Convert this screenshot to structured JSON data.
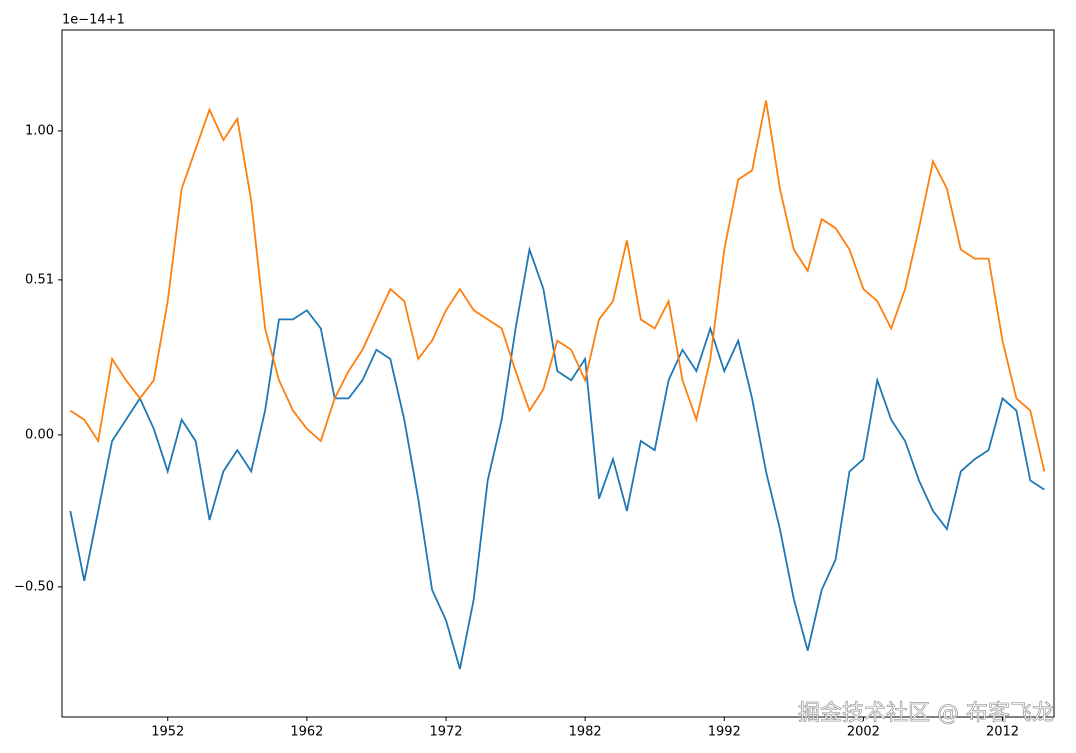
{
  "chart_data": {
    "type": "line",
    "offset_label": "1e−14+1",
    "watermark": "掘金技术社区 @ 布客飞龙",
    "x": [
      1945,
      1946,
      1947,
      1948,
      1949,
      1950,
      1951,
      1952,
      1953,
      1954,
      1955,
      1956,
      1957,
      1958,
      1959,
      1960,
      1961,
      1962,
      1963,
      1964,
      1965,
      1966,
      1967,
      1968,
      1969,
      1970,
      1971,
      1972,
      1973,
      1974,
      1975,
      1976,
      1977,
      1978,
      1979,
      1980,
      1981,
      1982,
      1983,
      1984,
      1985,
      1986,
      1987,
      1988,
      1989,
      1990,
      1991,
      1992,
      1993,
      1994,
      1995,
      1996,
      1997,
      1998,
      1999,
      2000,
      2001,
      2002,
      2003,
      2004,
      2005,
      2006,
      2007,
      2008,
      2009,
      2010,
      2011,
      2012,
      2013,
      2014,
      2015
    ],
    "series": [
      {
        "color": "#1f77b4",
        "values": [
          -0.25,
          -0.48,
          -0.25,
          -0.02,
          0.05,
          0.12,
          0.02,
          -0.12,
          0.05,
          -0.02,
          -0.28,
          -0.12,
          -0.05,
          -0.12,
          0.08,
          0.38,
          0.38,
          0.41,
          0.35,
          0.12,
          0.12,
          0.18,
          0.28,
          0.25,
          0.05,
          -0.21,
          -0.51,
          -0.61,
          -0.77,
          -0.54,
          -0.15,
          0.05,
          0.35,
          0.61,
          0.48,
          0.21,
          0.18,
          0.25,
          -0.21,
          -0.08,
          -0.25,
          -0.02,
          -0.05,
          0.18,
          0.28,
          0.21,
          0.35,
          0.21,
          0.31,
          0.12,
          -0.12,
          -0.31,
          -0.54,
          -0.71,
          -0.51,
          -0.41,
          -0.12,
          -0.08,
          0.18,
          0.05,
          -0.02,
          -0.15,
          -0.25,
          -0.31,
          -0.12,
          -0.08,
          -0.05,
          0.12,
          0.08,
          -0.15,
          -0.18
        ]
      },
      {
        "color": "#ff7f0e",
        "values": [
          0.08,
          0.05,
          -0.02,
          0.25,
          0.18,
          0.12,
          0.18,
          0.44,
          0.81,
          0.94,
          1.07,
          0.97,
          1.04,
          0.77,
          0.35,
          0.18,
          0.08,
          0.02,
          -0.02,
          0.12,
          0.21,
          0.28,
          0.38,
          0.48,
          0.44,
          0.25,
          0.31,
          0.41,
          0.48,
          0.41,
          0.38,
          0.35,
          0.21,
          0.08,
          0.15,
          0.31,
          0.28,
          0.18,
          0.38,
          0.44,
          0.64,
          0.38,
          0.35,
          0.44,
          0.18,
          0.05,
          0.25,
          0.61,
          0.84,
          0.87,
          1.1,
          0.81,
          0.61,
          0.54,
          0.71,
          0.68,
          0.61,
          0.48,
          0.44,
          0.35,
          0.48,
          0.68,
          0.9,
          0.81,
          0.61,
          0.58,
          0.58,
          0.31,
          0.12,
          0.08,
          -0.12
        ]
      }
    ],
    "xlim": [
      1944.4,
      2015.7
    ],
    "xticks": [
      1952,
      1962,
      1972,
      1982,
      1992,
      2002,
      2012
    ],
    "ylim": [
      -0.928,
      1.332
    ],
    "yticks": [
      {
        "value": -0.5,
        "label": "−0.50"
      },
      {
        "value": 0,
        "label": "0.00"
      },
      {
        "value": 0.51,
        "label": "0.51"
      },
      {
        "value": 1,
        "label": "1.00"
      }
    ]
  }
}
